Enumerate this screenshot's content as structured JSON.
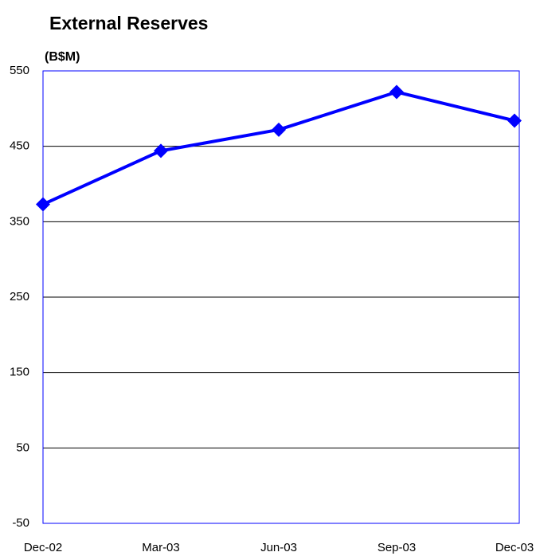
{
  "chart_data": {
    "type": "line",
    "title": "External Reserves",
    "y_label": "(B$M)",
    "categories": [
      "Dec-02",
      "Mar-03",
      "Jun-03",
      "Sep-03",
      "Dec-03"
    ],
    "series": [
      {
        "name": "External Reserves",
        "color": "#0000ff",
        "values": [
          373,
          444,
          472,
          522,
          484
        ]
      }
    ],
    "ylim": [
      -50,
      550
    ],
    "yticks": [
      -50,
      50,
      150,
      250,
      350,
      450,
      550
    ],
    "grid": true
  }
}
